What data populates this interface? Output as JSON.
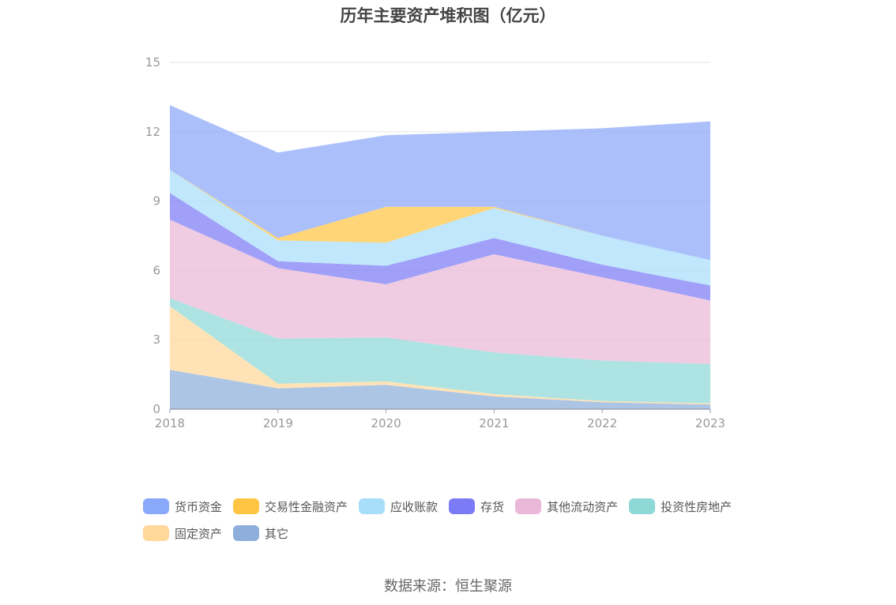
{
  "chart_data": {
    "type": "area",
    "stacked": true,
    "title": "历年主要资产堆积图（亿元）",
    "categories": [
      "2018",
      "2019",
      "2020",
      "2021",
      "2022",
      "2023"
    ],
    "ylim": [
      0,
      15
    ],
    "yticks": [
      0,
      3,
      6,
      9,
      12,
      15
    ],
    "grid": true,
    "legend_position": "bottom",
    "series": [
      {
        "name": "其它",
        "color": "#8eafdb",
        "values": [
          1.7,
          0.9,
          1.05,
          0.55,
          0.3,
          0.2
        ]
      },
      {
        "name": "固定资产",
        "color": "#ffd89a",
        "values": [
          2.75,
          0.2,
          0.15,
          0.1,
          0.05,
          0.05
        ]
      },
      {
        "name": "投资性房地产",
        "color": "#8ed8d8",
        "values": [
          0.35,
          1.95,
          1.9,
          1.8,
          1.75,
          1.7
        ]
      },
      {
        "name": "其他流动资产",
        "color": "#eab8d8",
        "values": [
          3.4,
          3.05,
          2.3,
          4.25,
          3.6,
          2.75
        ]
      },
      {
        "name": "存货",
        "color": "#7b7cf5",
        "values": [
          1.15,
          0.3,
          0.8,
          0.7,
          0.55,
          0.65
        ]
      },
      {
        "name": "应收账款",
        "color": "#a8defa",
        "values": [
          1.0,
          0.9,
          1.0,
          1.3,
          1.25,
          1.1
        ]
      },
      {
        "name": "交易性金融资产",
        "color": "#ffc543",
        "values": [
          0.0,
          0.1,
          1.55,
          0.05,
          0.0,
          0.0
        ]
      },
      {
        "name": "货币资金",
        "color": "#8aa8fa",
        "values": [
          2.8,
          3.7,
          3.1,
          3.25,
          4.65,
          6.0
        ]
      }
    ],
    "legend_order": [
      "货币资金",
      "交易性金融资产",
      "应收账款",
      "存货",
      "其他流动资产",
      "投资性房地产",
      "固定资产",
      "其它"
    ]
  },
  "source": "数据来源：恒生聚源"
}
